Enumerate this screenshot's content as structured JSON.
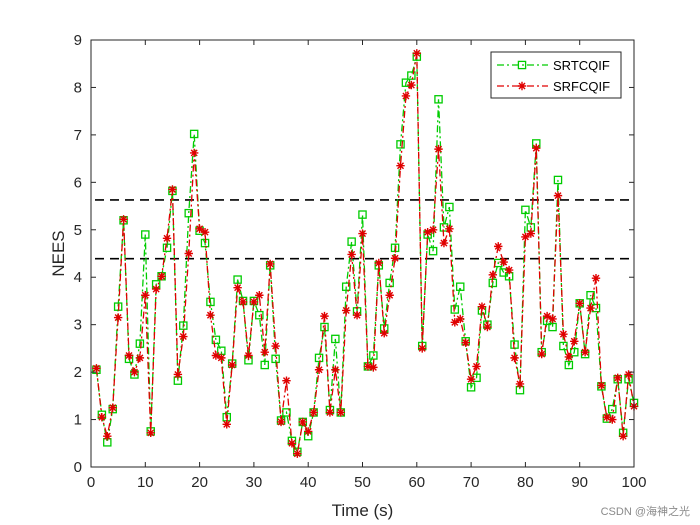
{
  "chart_data": {
    "type": "line",
    "title": "",
    "xlabel": "Time (s)",
    "ylabel": "NEES",
    "xlim": [
      0,
      100
    ],
    "ylim": [
      0,
      9
    ],
    "xticks": [
      0,
      10,
      20,
      30,
      40,
      50,
      60,
      70,
      80,
      90,
      100
    ],
    "yticks": [
      0,
      1,
      2,
      3,
      4,
      5,
      6,
      7,
      8,
      9
    ],
    "grid": false,
    "legend_position": "top-right",
    "thresholds": [
      {
        "name": "upper-bound",
        "value": 5.63,
        "style": "dashed",
        "color": "#000000"
      },
      {
        "name": "lower-bound",
        "value": 4.39,
        "style": "dashed",
        "color": "#000000"
      }
    ],
    "x": [
      1,
      2,
      3,
      4,
      5,
      6,
      7,
      8,
      9,
      10,
      11,
      12,
      13,
      14,
      15,
      16,
      17,
      18,
      19,
      20,
      21,
      22,
      23,
      24,
      25,
      26,
      27,
      28,
      29,
      30,
      31,
      32,
      33,
      34,
      35,
      36,
      37,
      38,
      39,
      40,
      41,
      42,
      43,
      44,
      45,
      46,
      47,
      48,
      49,
      50,
      51,
      52,
      53,
      54,
      55,
      56,
      57,
      58,
      59,
      60,
      61,
      62,
      63,
      64,
      65,
      66,
      67,
      68,
      69,
      70,
      71,
      72,
      73,
      74,
      75,
      76,
      77,
      78,
      79,
      80,
      81,
      82,
      83,
      84,
      85,
      86,
      87,
      88,
      89,
      90,
      91,
      92,
      93,
      94,
      95,
      96,
      97,
      98,
      99,
      100
    ],
    "series": [
      {
        "name": "SRTCQIF",
        "color": "#00cc00",
        "line_style": "dash-dot",
        "marker": "square",
        "values": [
          2.05,
          1.1,
          0.52,
          1.22,
          3.38,
          5.2,
          2.28,
          1.95,
          2.6,
          4.9,
          0.75,
          3.85,
          4.02,
          4.62,
          5.82,
          1.82,
          2.98,
          5.35,
          7.02,
          4.98,
          4.72,
          3.48,
          2.68,
          2.45,
          1.05,
          2.18,
          3.95,
          3.5,
          2.25,
          3.5,
          3.2,
          2.15,
          4.25,
          2.28,
          0.98,
          1.15,
          0.55,
          0.32,
          0.95,
          0.65,
          1.15,
          2.3,
          2.95,
          1.2,
          2.7,
          1.15,
          3.8,
          4.75,
          3.28,
          5.32,
          2.12,
          2.35,
          4.25,
          2.92,
          3.88,
          4.62,
          6.8,
          8.1,
          8.25,
          8.65,
          2.55,
          4.9,
          4.55,
          7.75,
          5.05,
          5.48,
          3.32,
          3.8,
          2.65,
          1.68,
          1.88,
          3.3,
          3.0,
          3.88,
          4.3,
          4.1,
          4.02,
          2.58,
          1.62,
          5.42,
          5.05,
          6.82,
          2.42,
          3.08,
          2.95,
          6.05,
          2.55,
          2.15,
          2.42,
          3.45,
          2.38,
          3.62,
          3.35,
          1.7,
          1.02,
          1.22,
          1.85,
          0.72,
          1.85,
          1.35
        ]
      },
      {
        "name": "SRFCQIF",
        "color": "#e00000",
        "line_style": "dash-dot",
        "marker": "asterisk",
        "values": [
          2.08,
          1.05,
          0.65,
          1.25,
          3.15,
          5.22,
          2.35,
          2.0,
          2.3,
          3.62,
          0.72,
          3.75,
          4.02,
          4.82,
          5.85,
          1.95,
          2.75,
          4.5,
          6.62,
          5.02,
          4.95,
          3.2,
          2.35,
          2.3,
          0.9,
          2.15,
          3.78,
          3.48,
          2.35,
          3.48,
          3.62,
          2.42,
          4.28,
          2.55,
          0.95,
          1.82,
          0.5,
          0.28,
          0.95,
          0.75,
          1.15,
          2.05,
          3.18,
          1.15,
          2.05,
          1.15,
          3.3,
          4.48,
          3.2,
          4.92,
          2.12,
          2.1,
          4.3,
          2.82,
          3.62,
          4.4,
          6.35,
          7.82,
          8.05,
          8.72,
          2.5,
          4.95,
          5.0,
          6.7,
          4.72,
          5.02,
          3.05,
          3.12,
          2.62,
          1.85,
          2.12,
          3.38,
          2.95,
          4.05,
          4.65,
          4.32,
          4.15,
          2.3,
          1.75,
          4.85,
          4.92,
          6.72,
          2.38,
          3.18,
          3.12,
          5.72,
          2.8,
          2.32,
          2.65,
          3.45,
          2.42,
          3.35,
          3.98,
          1.72,
          1.05,
          1.0,
          1.88,
          0.65,
          1.95,
          1.28
        ]
      }
    ]
  },
  "watermark": "CSDN @海神之光"
}
